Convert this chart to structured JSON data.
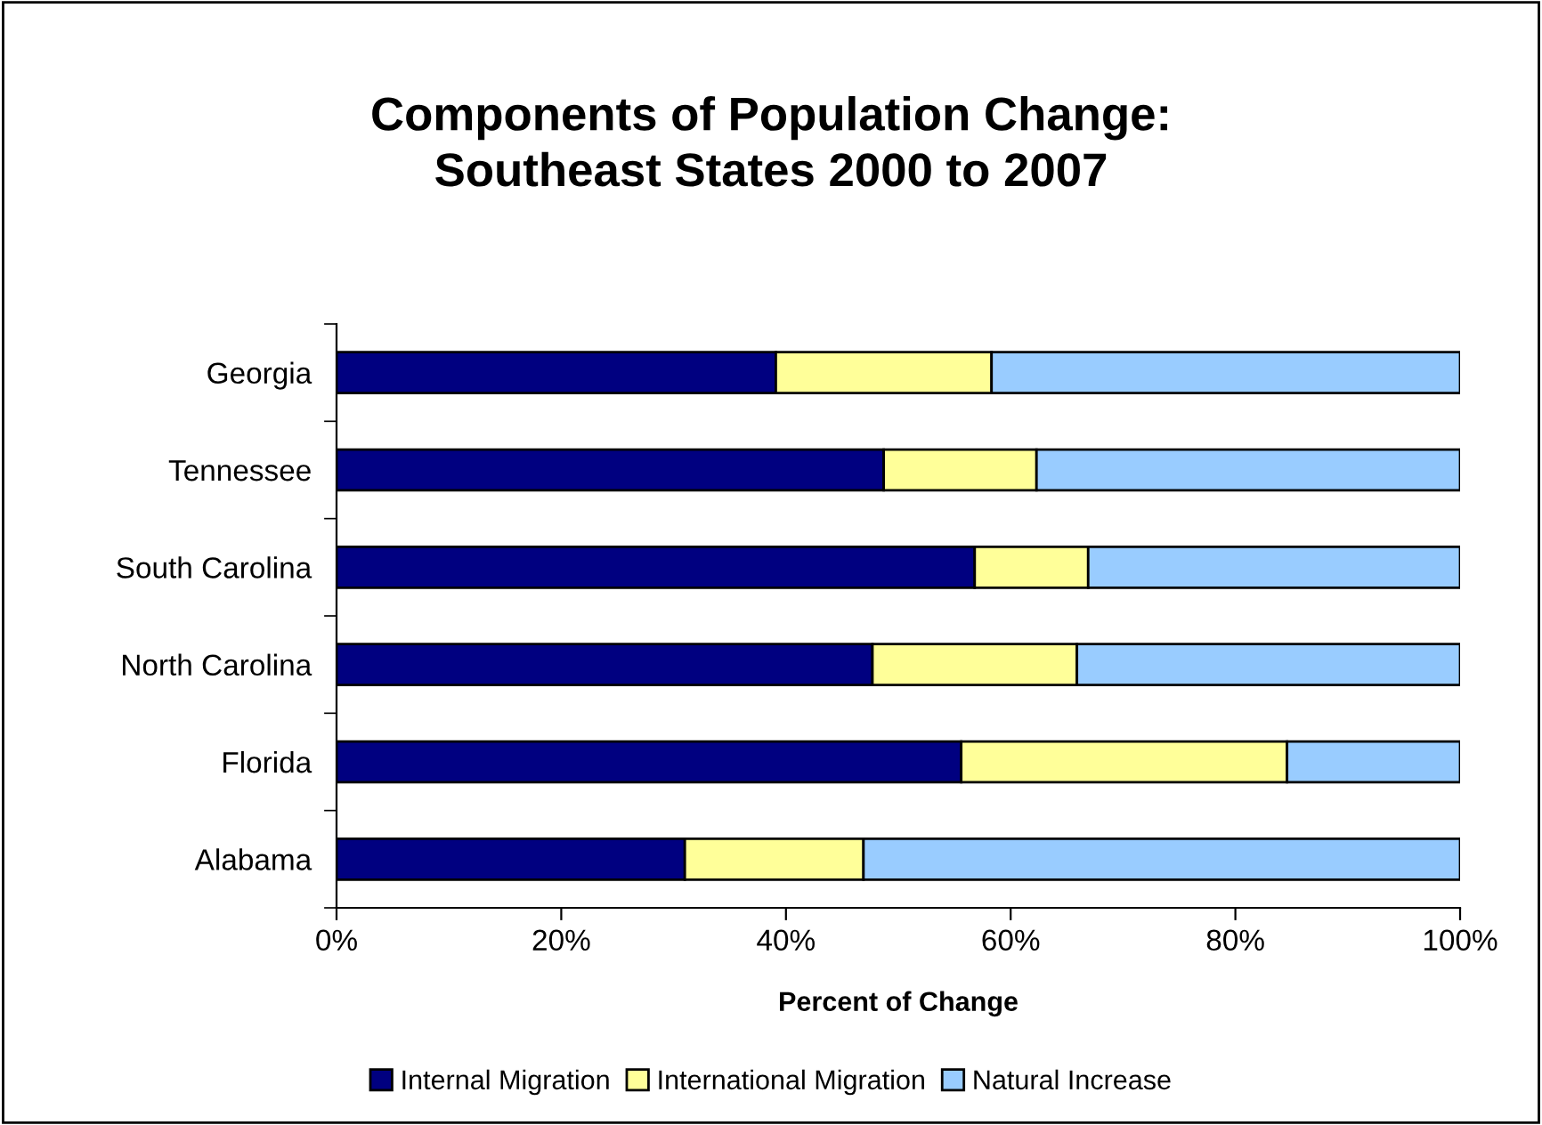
{
  "chart_data": {
    "type": "bar",
    "orientation": "horizontal",
    "stacked": true,
    "title": "Components of Population Change:\nSoutheast States 2000 to 2007",
    "xlabel": "Percent of Change",
    "categories": [
      "Georgia",
      "Tennessee",
      "South Carolina",
      "North Carolina",
      "Florida",
      "Alabama"
    ],
    "series": [
      {
        "name": "Internal Migration",
        "color": "#000080",
        "values": [
          39.1,
          48.7,
          56.8,
          47.7,
          55.6,
          31.0
        ]
      },
      {
        "name": "International Migration",
        "color": "#ffff99",
        "values": [
          19.2,
          13.6,
          10.1,
          18.2,
          29.0,
          15.9
        ]
      },
      {
        "name": "Natural Increase",
        "color": "#99ccff",
        "values": [
          41.7,
          37.7,
          33.1,
          34.1,
          15.4,
          53.1
        ]
      }
    ],
    "xlim": [
      0,
      100
    ],
    "xticks": [
      {
        "value": 0,
        "label": "0%"
      },
      {
        "value": 20,
        "label": "20%"
      },
      {
        "value": 40,
        "label": "40%"
      },
      {
        "value": 60,
        "label": "60%"
      },
      {
        "value": 80,
        "label": "80%"
      },
      {
        "value": 100,
        "label": "100%"
      }
    ],
    "grid": false,
    "legend": "bottom"
  }
}
